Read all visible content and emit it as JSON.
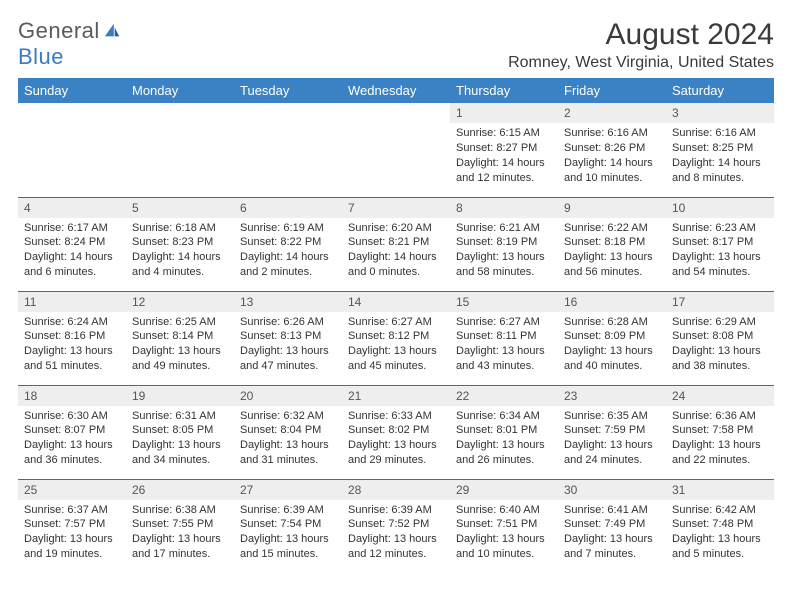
{
  "logo": {
    "text_general": "General",
    "text_blue": "Blue"
  },
  "title": "August 2024",
  "location": "Romney, West Virginia, United States",
  "colors": {
    "header_bg": "#3b82c4",
    "header_text": "#ffffff",
    "daynum_bg": "#eeeeee",
    "row_border": "#3b6fa0",
    "logo_gray": "#5a5a5a",
    "logo_blue": "#3b7bbf"
  },
  "weekdays": [
    "Sunday",
    "Monday",
    "Tuesday",
    "Wednesday",
    "Thursday",
    "Friday",
    "Saturday"
  ],
  "weeks": [
    [
      null,
      null,
      null,
      null,
      {
        "n": "1",
        "sr": "6:15 AM",
        "ss": "8:27 PM",
        "dh": "14",
        "dm": "12"
      },
      {
        "n": "2",
        "sr": "6:16 AM",
        "ss": "8:26 PM",
        "dh": "14",
        "dm": "10"
      },
      {
        "n": "3",
        "sr": "6:16 AM",
        "ss": "8:25 PM",
        "dh": "14",
        "dm": "8"
      }
    ],
    [
      {
        "n": "4",
        "sr": "6:17 AM",
        "ss": "8:24 PM",
        "dh": "14",
        "dm": "6"
      },
      {
        "n": "5",
        "sr": "6:18 AM",
        "ss": "8:23 PM",
        "dh": "14",
        "dm": "4"
      },
      {
        "n": "6",
        "sr": "6:19 AM",
        "ss": "8:22 PM",
        "dh": "14",
        "dm": "2"
      },
      {
        "n": "7",
        "sr": "6:20 AM",
        "ss": "8:21 PM",
        "dh": "14",
        "dm": "0"
      },
      {
        "n": "8",
        "sr": "6:21 AM",
        "ss": "8:19 PM",
        "dh": "13",
        "dm": "58"
      },
      {
        "n": "9",
        "sr": "6:22 AM",
        "ss": "8:18 PM",
        "dh": "13",
        "dm": "56"
      },
      {
        "n": "10",
        "sr": "6:23 AM",
        "ss": "8:17 PM",
        "dh": "13",
        "dm": "54"
      }
    ],
    [
      {
        "n": "11",
        "sr": "6:24 AM",
        "ss": "8:16 PM",
        "dh": "13",
        "dm": "51"
      },
      {
        "n": "12",
        "sr": "6:25 AM",
        "ss": "8:14 PM",
        "dh": "13",
        "dm": "49"
      },
      {
        "n": "13",
        "sr": "6:26 AM",
        "ss": "8:13 PM",
        "dh": "13",
        "dm": "47"
      },
      {
        "n": "14",
        "sr": "6:27 AM",
        "ss": "8:12 PM",
        "dh": "13",
        "dm": "45"
      },
      {
        "n": "15",
        "sr": "6:27 AM",
        "ss": "8:11 PM",
        "dh": "13",
        "dm": "43"
      },
      {
        "n": "16",
        "sr": "6:28 AM",
        "ss": "8:09 PM",
        "dh": "13",
        "dm": "40"
      },
      {
        "n": "17",
        "sr": "6:29 AM",
        "ss": "8:08 PM",
        "dh": "13",
        "dm": "38"
      }
    ],
    [
      {
        "n": "18",
        "sr": "6:30 AM",
        "ss": "8:07 PM",
        "dh": "13",
        "dm": "36"
      },
      {
        "n": "19",
        "sr": "6:31 AM",
        "ss": "8:05 PM",
        "dh": "13",
        "dm": "34"
      },
      {
        "n": "20",
        "sr": "6:32 AM",
        "ss": "8:04 PM",
        "dh": "13",
        "dm": "31"
      },
      {
        "n": "21",
        "sr": "6:33 AM",
        "ss": "8:02 PM",
        "dh": "13",
        "dm": "29"
      },
      {
        "n": "22",
        "sr": "6:34 AM",
        "ss": "8:01 PM",
        "dh": "13",
        "dm": "26"
      },
      {
        "n": "23",
        "sr": "6:35 AM",
        "ss": "7:59 PM",
        "dh": "13",
        "dm": "24"
      },
      {
        "n": "24",
        "sr": "6:36 AM",
        "ss": "7:58 PM",
        "dh": "13",
        "dm": "22"
      }
    ],
    [
      {
        "n": "25",
        "sr": "6:37 AM",
        "ss": "7:57 PM",
        "dh": "13",
        "dm": "19"
      },
      {
        "n": "26",
        "sr": "6:38 AM",
        "ss": "7:55 PM",
        "dh": "13",
        "dm": "17"
      },
      {
        "n": "27",
        "sr": "6:39 AM",
        "ss": "7:54 PM",
        "dh": "13",
        "dm": "15"
      },
      {
        "n": "28",
        "sr": "6:39 AM",
        "ss": "7:52 PM",
        "dh": "13",
        "dm": "12"
      },
      {
        "n": "29",
        "sr": "6:40 AM",
        "ss": "7:51 PM",
        "dh": "13",
        "dm": "10"
      },
      {
        "n": "30",
        "sr": "6:41 AM",
        "ss": "7:49 PM",
        "dh": "13",
        "dm": "7"
      },
      {
        "n": "31",
        "sr": "6:42 AM",
        "ss": "7:48 PM",
        "dh": "13",
        "dm": "5"
      }
    ]
  ]
}
